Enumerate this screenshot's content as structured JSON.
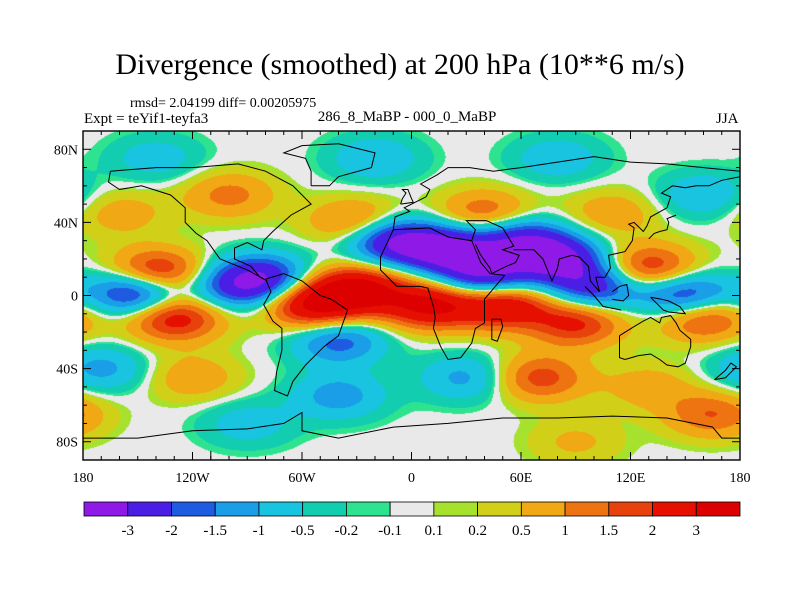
{
  "chart_data": {
    "type": "heatmap",
    "title": "Divergence (smoothed) at 200 hPa (10**6 m/s)",
    "stats": "rmsd= 2.04199 diff= 0.00205975",
    "experiment": "Expt = teYif1-teyfa3",
    "subtitle": "286_8_MaBP - 000_0_MaBP",
    "season": "JJA",
    "x_range": [
      -180,
      180
    ],
    "y_range": [
      -90,
      90
    ],
    "x_ticks": [
      {
        "value": -180,
        "label": "180"
      },
      {
        "value": -120,
        "label": "120W"
      },
      {
        "value": -60,
        "label": "60W"
      },
      {
        "value": 0,
        "label": "0"
      },
      {
        "value": 60,
        "label": "60E"
      },
      {
        "value": 120,
        "label": "120E"
      },
      {
        "value": 180,
        "label": "180"
      }
    ],
    "y_ticks": [
      {
        "value": 80,
        "label": "80N"
      },
      {
        "value": 40,
        "label": "40N"
      },
      {
        "value": 0,
        "label": "0"
      },
      {
        "value": -40,
        "label": "40S"
      },
      {
        "value": -80,
        "label": "80S"
      }
    ],
    "colorbar": {
      "levels": [
        "-3",
        "-2",
        "-1.5",
        "-1",
        "-0.5",
        "-0.2",
        "-0.1",
        "0.1",
        "0.2",
        "0.5",
        "1",
        "1.5",
        "2",
        "3"
      ],
      "colors": [
        "#8f19e6",
        "#4b1ee6",
        "#1e5be0",
        "#1b9ee8",
        "#19c4e0",
        "#12cdb0",
        "#2ee38f",
        "#e9e9e9",
        "#a6e22d",
        "#d2cf19",
        "#f0a814",
        "#ee7412",
        "#e8420c",
        "#e61000",
        "#dd0000"
      ]
    },
    "field_features": [
      {
        "lon": -140,
        "lat": 12,
        "value": 2.8
      },
      {
        "lon": -150,
        "lat": 2,
        "value": -3.2
      },
      {
        "lon": -130,
        "lat": -12,
        "value": 2.6
      },
      {
        "lon": -95,
        "lat": 5,
        "value": -2.0
      },
      {
        "lon": -80,
        "lat": 10,
        "value": -2.2
      },
      {
        "lon": -55,
        "lat": -5,
        "value": 3.0
      },
      {
        "lon": -30,
        "lat": 3,
        "value": 3.5
      },
      {
        "lon": -40,
        "lat": -25,
        "value": -1.8
      },
      {
        "lon": -10,
        "lat": 30,
        "value": -3.0
      },
      {
        "lon": 20,
        "lat": 25,
        "value": -3.2
      },
      {
        "lon": 40,
        "lat": 10,
        "value": -3.0
      },
      {
        "lon": 60,
        "lat": 30,
        "value": -2.5
      },
      {
        "lon": 10,
        "lat": -5,
        "value": 3.2
      },
      {
        "lon": 50,
        "lat": -5,
        "value": 3.0
      },
      {
        "lon": 80,
        "lat": 20,
        "value": -3.0
      },
      {
        "lon": 100,
        "lat": 5,
        "value": -2.5
      },
      {
        "lon": 90,
        "lat": -15,
        "value": 2.2
      },
      {
        "lon": 130,
        "lat": 15,
        "value": 2.2
      },
      {
        "lon": 150,
        "lat": 0,
        "value": -2.5
      },
      {
        "lon": 160,
        "lat": -12,
        "value": 2.0
      },
      {
        "lon": -160,
        "lat": 45,
        "value": 0.8
      },
      {
        "lon": -100,
        "lat": 55,
        "value": 1.2
      },
      {
        "lon": -30,
        "lat": 40,
        "value": 1.5
      },
      {
        "lon": 40,
        "lat": 45,
        "value": 1.5
      },
      {
        "lon": 110,
        "lat": 45,
        "value": 0.9
      },
      {
        "lon": 160,
        "lat": 55,
        "value": -1.0
      },
      {
        "lon": -170,
        "lat": -40,
        "value": -1.2
      },
      {
        "lon": -120,
        "lat": -45,
        "value": 0.9
      },
      {
        "lon": -40,
        "lat": -55,
        "value": -1.3
      },
      {
        "lon": 30,
        "lat": -45,
        "value": -1.2
      },
      {
        "lon": 70,
        "lat": -45,
        "value": 1.8
      },
      {
        "lon": 130,
        "lat": -50,
        "value": 0.8
      },
      {
        "lon": 165,
        "lat": -65,
        "value": 1.5
      },
      {
        "lon": -20,
        "lat": 75,
        "value": -1.0
      },
      {
        "lon": 80,
        "lat": 75,
        "value": -0.9
      },
      {
        "lon": -140,
        "lat": 75,
        "value": -0.8
      },
      {
        "lon": -90,
        "lat": -70,
        "value": -0.8
      },
      {
        "lon": 90,
        "lat": -80,
        "value": 0.6
      }
    ]
  }
}
